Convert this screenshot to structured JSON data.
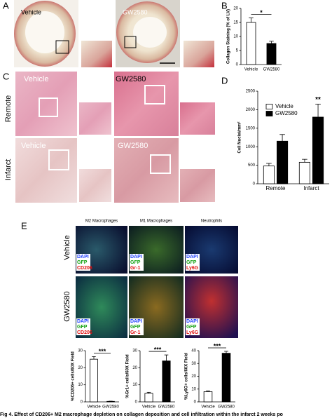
{
  "panels": [
    "A",
    "B",
    "C",
    "D",
    "E"
  ],
  "panel_a": {
    "left": "Vehicle",
    "right": "GW2580"
  },
  "panel_c": {
    "rows": [
      "Remote",
      "Infarct"
    ],
    "top_left": "Vehicle",
    "top_right": "GW2580",
    "bottom_left": "Vehicle",
    "bottom_right": "GW2580"
  },
  "panel_e": {
    "columns": [
      "M2 Macrophages",
      "M1 Macrophages",
      "Neutrophils"
    ],
    "rows": [
      "Vehicle",
      "GW2580"
    ],
    "stains": [
      [
        "DAPI",
        "GFP",
        "CD206"
      ],
      [
        "DAPI",
        "GFP",
        "Gr-1"
      ],
      [
        "DAPI",
        "GFP",
        "Ly6G"
      ]
    ]
  },
  "chart_data": [
    {
      "type": "bar",
      "ylabel": "Collagen Staining (% of LV)",
      "categories": [
        "Vehicle",
        "GW2580"
      ],
      "colors": [
        "#ffffff",
        "#000000"
      ],
      "series": [
        {
          "values": [
            15,
            7.5
          ],
          "errors": [
            1.6,
            0.8
          ]
        }
      ],
      "ylim": [
        0,
        20
      ],
      "yticks": [
        0,
        5,
        10,
        15,
        20
      ],
      "annotation": "*"
    },
    {
      "type": "bar",
      "ylabel": "Cell Nuclei/mm²",
      "categories": [
        "Remote",
        "Infarct"
      ],
      "series": [
        {
          "name": "Vehicle",
          "color": "#ffffff",
          "values": [
            480,
            580
          ],
          "errors": [
            70,
            80
          ]
        },
        {
          "name": "GW2580",
          "color": "#000000",
          "values": [
            1150,
            1800
          ],
          "errors": [
            180,
            350
          ]
        }
      ],
      "ylim": [
        0,
        2500
      ],
      "yticks": [
        0,
        500,
        1000,
        1500,
        2000,
        2500
      ],
      "annotation": "**"
    },
    {
      "type": "bar",
      "ylabel": "%CD206+ cells/60X Field",
      "categories": [
        "Vehicle",
        "GW2580"
      ],
      "colors": [
        "#ffffff",
        "#000000"
      ],
      "series": [
        {
          "values": [
            25,
            0.3
          ],
          "errors": [
            1.5,
            0.1
          ]
        }
      ],
      "ylim": [
        0,
        30
      ],
      "yticks": [
        0,
        10,
        20,
        30
      ],
      "annotation": "***"
    },
    {
      "type": "bar",
      "ylabel": "%Gr1+ cells/60X Field",
      "categories": [
        "Vehicle",
        "GW2580"
      ],
      "colors": [
        "#ffffff",
        "#000000"
      ],
      "series": [
        {
          "values": [
            5,
            24
          ],
          "errors": [
            0.6,
            3.5
          ]
        }
      ],
      "ylim": [
        0,
        30
      ],
      "yticks": [
        0,
        10,
        20,
        30
      ],
      "annotation": "***"
    },
    {
      "type": "bar",
      "ylabel": "%Ly6G+ cells/60X Field",
      "categories": [
        "Vehicle",
        "GW2580"
      ],
      "colors": [
        "#ffffff",
        "#000000"
      ],
      "series": [
        {
          "values": [
            8,
            38
          ],
          "errors": [
            0.6,
            1.5
          ]
        }
      ],
      "ylim": [
        0,
        40
      ],
      "yticks": [
        0,
        10,
        20,
        30,
        40
      ],
      "annotation": "***"
    }
  ],
  "caption": "Fig 4. Effect of CD206+ M2 macrophage depletion on collagen deposition and cell infiltration within the infarct 2 weeks po"
}
